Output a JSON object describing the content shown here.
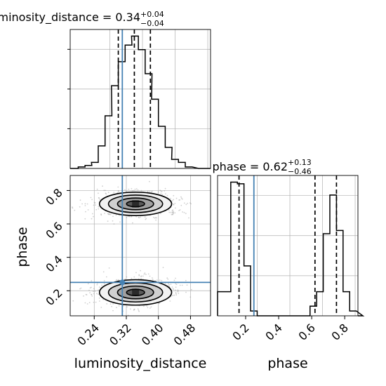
{
  "chart_data": [
    {
      "type": "histogram",
      "panel": "luminosity_distance marginal",
      "title": "luminosity_distance = 0.34",
      "title_sup": "+0.04",
      "title_sub": "−0.04",
      "xlim": [
        0.18,
        0.53
      ],
      "bin_edges": [
        0.2,
        0.217,
        0.233,
        0.25,
        0.267,
        0.283,
        0.3,
        0.317,
        0.333,
        0.35,
        0.367,
        0.383,
        0.4,
        0.417,
        0.433,
        0.45,
        0.467,
        0.483
      ],
      "counts": [
        1,
        2,
        4,
        15,
        35,
        55,
        71,
        82,
        88,
        79,
        63,
        46,
        28,
        14,
        6,
        4,
        1
      ],
      "quantiles": [
        0.3,
        0.34,
        0.38
      ],
      "truth": 0.31,
      "grid": true
    },
    {
      "type": "histogram",
      "panel": "phase marginal",
      "title": "phase = 0.62",
      "title_sup": "+0.13",
      "title_sub": "−0.46",
      "xlim": [
        0.03,
        0.88
      ],
      "xticks": [
        "0.2",
        "0.4",
        "0.6",
        "0.8"
      ],
      "xlabel": "phase",
      "bin_edges": [
        0.03,
        0.07,
        0.11,
        0.15,
        0.19,
        0.23,
        0.27,
        0.31,
        0.35,
        0.39,
        0.43,
        0.47,
        0.51,
        0.55,
        0.59,
        0.63,
        0.67,
        0.71,
        0.75,
        0.79,
        0.83,
        0.87
      ],
      "counts": [
        15,
        15,
        83,
        82,
        31,
        3,
        0,
        0,
        0,
        0,
        0,
        0,
        0,
        0,
        6,
        15,
        51,
        75,
        53,
        15,
        3
      ],
      "quantiles": [
        0.16,
        0.62,
        0.75
      ],
      "truth": 0.25,
      "grid": true
    },
    {
      "type": "contour",
      "panel": "phase vs luminosity_distance",
      "xlabel": "luminosity_distance",
      "ylabel": "phase",
      "xlim": [
        0.18,
        0.53
      ],
      "ylim": [
        0.05,
        0.89
      ],
      "xticks": [
        "0.24",
        "0.32",
        "0.40",
        "0.48"
      ],
      "yticks": [
        "0.2",
        "0.4",
        "0.6",
        "0.8"
      ],
      "modes": [
        {
          "x": 0.343,
          "y": 0.72,
          "sx": 0.045,
          "sy": 0.035
        },
        {
          "x": 0.343,
          "y": 0.19,
          "sx": 0.045,
          "sy": 0.038
        }
      ],
      "truth": {
        "x": 0.31,
        "y": 0.25
      },
      "grid": true
    }
  ],
  "colors": {
    "truth": "#4682b4",
    "line": "#000000",
    "grid": "#b0b0b0",
    "scatter": "#9a9a9a"
  }
}
